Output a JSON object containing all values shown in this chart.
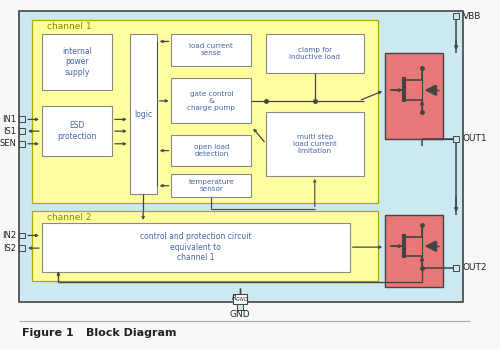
{
  "bg_outer": "#cce8f0",
  "bg_channel1": "#ffffa0",
  "bg_white": "#ffffff",
  "bg_mosfet": "#e87878",
  "border_gray": "#888888",
  "border_dark": "#444444",
  "border_yellow": "#aaaa00",
  "text_blue": "#4466aa",
  "text_black": "#222222",
  "text_yellow_label": "#888800",
  "fig_bg": "#f8f8f8",
  "title": "Figure 1",
  "title2": "Block Diagram",
  "channel1_label": "channel 1",
  "channel2_label": "channel 2",
  "labels": {
    "internal_power": "internal\npower\nsupply",
    "esd": "ESD\nprotection",
    "logic": "logic",
    "load_current": "load current\nsense",
    "gate_control": "gate control\n&\ncharge pump",
    "open_load": "open load\ndetection",
    "temp_sensor": "temperature\nsensor",
    "clamp": "clamp for\ninductive load",
    "multi_step": "multi step\nload current\nlimitation",
    "ch2_block": "control and protection circuit\nequivalent to\nchannel 1",
    "VBB": "VBB",
    "OUT1": "OUT1",
    "OUT2": "OUT2",
    "GND": "GND",
    "IN1": "IN1",
    "IS1": "IS1",
    "SEN": "SEN",
    "IN2": "IN2",
    "IS2": "IS2",
    "RGND": "R"
  }
}
